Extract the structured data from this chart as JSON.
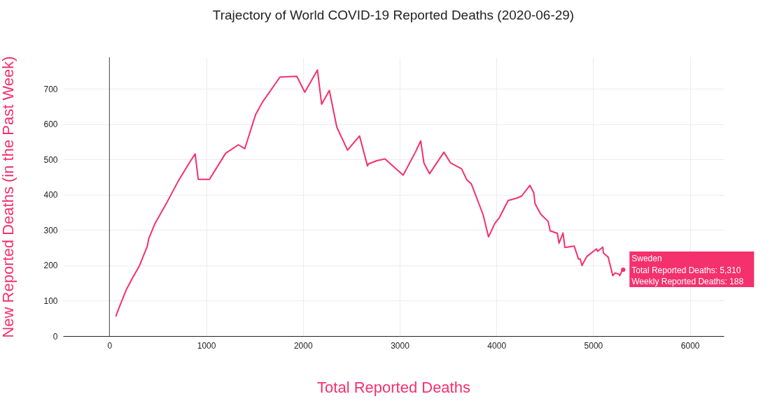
{
  "chart_data": {
    "type": "line",
    "title": "Trajectory of World COVID-19 Reported Deaths (2020-06-29)",
    "xlabel": "Total Reported Deaths",
    "ylabel": "New Reported Deaths (in the Past Week)",
    "x": [
      65,
      109,
      174,
      239,
      312,
      355,
      391,
      406,
      471,
      587,
      717,
      833,
      886,
      918,
      1034,
      1201,
      1333,
      1399,
      1510,
      1582,
      1763,
      1937,
      2019,
      2150,
      2193,
      2273,
      2350,
      2461,
      2585,
      2667,
      2679,
      2763,
      2848,
      3036,
      3162,
      3217,
      3251,
      3309,
      3457,
      3525,
      3640,
      3693,
      3741,
      3862,
      3918,
      3983,
      4031,
      4121,
      4213,
      4261,
      4346,
      4386,
      4399,
      4459,
      4534,
      4556,
      4630,
      4647,
      4688,
      4708,
      4804,
      4848,
      4865,
      4884,
      4933,
      5034,
      5046,
      5099,
      5106,
      5154,
      5203,
      5227,
      5270,
      5275,
      5304,
      5310
    ],
    "series": [
      {
        "color": "#f4306d",
        "values": [
          55,
          87,
          131,
          165,
          200,
          230,
          254,
          276,
          319,
          375,
          442,
          494,
          516,
          444,
          444,
          518,
          542,
          531,
          627,
          663,
          734,
          736,
          691,
          754,
          657,
          696,
          592,
          527,
          567,
          482,
          488,
          497,
          502,
          456,
          521,
          553,
          490,
          460,
          521,
          491,
          474,
          443,
          431,
          344,
          281,
          319,
          336,
          384,
          391,
          397,
          427,
          406,
          375,
          345,
          325,
          298,
          291,
          263,
          292,
          251,
          255,
          218,
          219,
          200,
          225,
          247,
          240,
          252,
          235,
          224,
          171,
          179,
          175,
          171,
          189,
          188
        ]
      }
    ],
    "xlim": [
      -480,
      6350
    ],
    "xticks": [
      0,
      1000,
      2000,
      3000,
      4000,
      5000,
      6000
    ],
    "ylim": [
      0,
      790
    ],
    "yticks": [
      0,
      100,
      200,
      300,
      400,
      500,
      600,
      700
    ],
    "grid": true,
    "ref_lines": [
      {
        "axis": "x",
        "value": 0,
        "color": "#444444"
      }
    ],
    "annotations": [
      {
        "text": "Sweden\nTotal Reported Deaths: 5,310\nWeekly Reported Deaths: 188",
        "x": 5310,
        "y": 188
      }
    ]
  }
}
